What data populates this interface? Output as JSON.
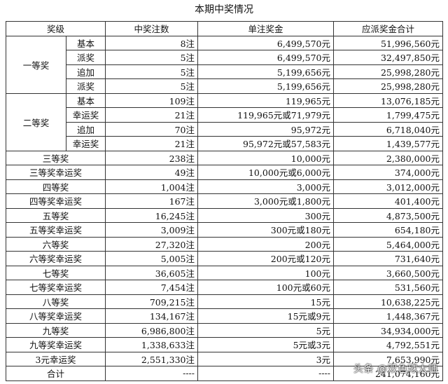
{
  "title": "本期中奖情况",
  "headers": [
    "奖级",
    "中奖注数",
    "单注奖金",
    "应派奖金合计"
  ],
  "first_prize": {
    "label": "一等奖",
    "rows": [
      {
        "sub": "基本",
        "count": "8注",
        "amount": "6,499,570元",
        "total": "51,996,560元"
      },
      {
        "sub": "派奖",
        "count": "5注",
        "amount": "6,499,570元",
        "total": "32,497,850元"
      },
      {
        "sub": "追加",
        "count": "5注",
        "amount": "5,199,656元",
        "total": "25,998,280元"
      },
      {
        "sub": "派奖",
        "count": "5注",
        "amount": "5,199,656元",
        "total": "25,998,280元"
      }
    ]
  },
  "second_prize": {
    "label": "二等奖",
    "rows": [
      {
        "sub": "基本",
        "count": "109注",
        "amount": "119,965元",
        "total": "13,076,185元"
      },
      {
        "sub": "幸运奖",
        "count": "21注",
        "amount": "119,965元或71,979元",
        "total": "1,799,475元"
      },
      {
        "sub": "追加",
        "count": "70注",
        "amount": "95,972元",
        "total": "6,718,040元"
      },
      {
        "sub": "幸运奖",
        "count": "21注",
        "amount": "95,972元或57,583元",
        "total": "1,439,577元"
      }
    ]
  },
  "rows": [
    {
      "level": "三等奖",
      "count": "238注",
      "amount": "10,000元",
      "total": "2,380,000元"
    },
    {
      "level": "三等奖幸运奖",
      "count": "49注",
      "amount": "10,000元或6,000元",
      "total": "374,000元"
    },
    {
      "level": "四等奖",
      "count": "1,004注",
      "amount": "3,000元",
      "total": "3,012,000元"
    },
    {
      "level": "四等奖幸运奖",
      "count": "167注",
      "amount": "3,000元或1,800元",
      "total": "401,400元"
    },
    {
      "level": "五等奖",
      "count": "16,245注",
      "amount": "300元",
      "total": "4,873,500元"
    },
    {
      "level": "五等奖幸运奖",
      "count": "3,009注",
      "amount": "300元或180元",
      "total": "654,180元"
    },
    {
      "level": "六等奖",
      "count": "27,320注",
      "amount": "200元",
      "total": "5,464,000元"
    },
    {
      "level": "六等奖幸运奖",
      "count": "5,005注",
      "amount": "200元或120元",
      "total": "731,640元"
    },
    {
      "level": "七等奖",
      "count": "36,605注",
      "amount": "100元",
      "total": "3,660,500元"
    },
    {
      "level": "七等奖幸运奖",
      "count": "7,454注",
      "amount": "100元或60元",
      "total": "531,560元"
    },
    {
      "level": "八等奖",
      "count": "709,215注",
      "amount": "15元",
      "total": "10,638,225元"
    },
    {
      "level": "八等奖幸运奖",
      "count": "134,167注",
      "amount": "15元或9元",
      "total": "1,448,367元"
    },
    {
      "level": "九等奖",
      "count": "6,986,800注",
      "amount": "5元",
      "total": "34,934,000元"
    },
    {
      "level": "九等奖幸运奖",
      "count": "1,338,633注",
      "amount": "5元或3元",
      "total": "4,792,551元"
    },
    {
      "level": "3元幸运奖",
      "count": "2,551,330注",
      "amount": "3元",
      "total": "7,653,990元"
    }
  ],
  "total_row": {
    "level": "合计",
    "count": "----",
    "amount": "----",
    "total": "241,074,160元"
  },
  "watermark": "头条 @双色球大师"
}
